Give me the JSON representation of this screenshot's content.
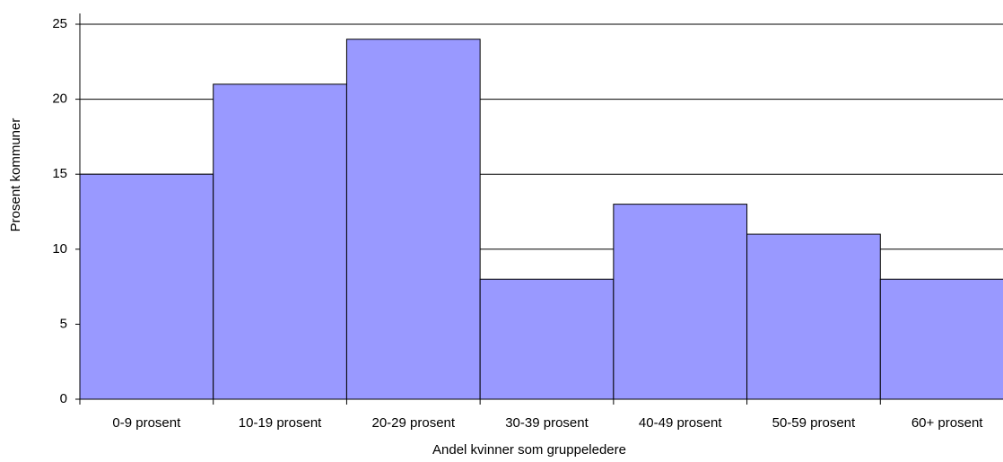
{
  "chart_data": {
    "type": "bar",
    "categories": [
      "0-9 prosent",
      "10-19 prosent",
      "20-29 prosent",
      "30-39 prosent",
      "40-49 prosent",
      "50-59 prosent",
      "60+ prosent"
    ],
    "values": [
      15,
      21,
      24,
      8,
      13,
      11,
      8
    ],
    "color": "#9999ff",
    "ylim": [
      0,
      25
    ],
    "yticks": [
      0,
      5,
      10,
      15,
      20,
      25
    ],
    "grid": true,
    "ylabel": "Prosent kommuner",
    "xlabel": "Andel kvinner som gruppeledere"
  }
}
